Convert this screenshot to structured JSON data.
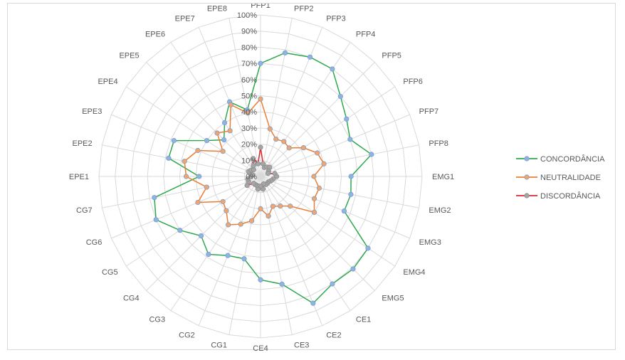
{
  "chart_data": {
    "type": "radar",
    "categories": [
      "PFP1",
      "PFP2",
      "PFP3",
      "PFP4",
      "PFP5",
      "PFP6",
      "PFP7",
      "PFP8",
      "EMG1",
      "EMG2",
      "EMG3",
      "EMG4",
      "EMG5",
      "CE1",
      "CE2",
      "CE3",
      "CE4",
      "CG1",
      "CG2",
      "CG3",
      "CG4",
      "CG5",
      "CG6",
      "CG7",
      "EPE1",
      "EPE2",
      "EPE3",
      "EPE4",
      "EPE5",
      "EPE6",
      "EPE7",
      "EPE8"
    ],
    "radial_ticks": [
      "0%",
      "10%",
      "20%",
      "30%",
      "40%",
      "50%",
      "60%",
      "70%",
      "80%",
      "90%",
      "100%"
    ],
    "rmax": 100,
    "series": [
      {
        "name": "CONCORDÂNCIA",
        "color": "#2ea84f",
        "marker": "#8fb4e3",
        "values": [
          70,
          78,
          80,
          80,
          70,
          64,
          60,
          70,
          56,
          57,
          56,
          80,
          81,
          80,
          85,
          68,
          64,
          52,
          53,
          58,
          52,
          60,
          70,
          67,
          38,
          58,
          58,
          40,
          32,
          40,
          50,
          42
        ]
      },
      {
        "name": "NEUTRALIDADE",
        "color": "#ed7d31",
        "marker": "#f4a66a",
        "values": [
          48,
          30,
          25,
          26,
          25,
          32,
          38,
          40,
          33,
          37,
          36,
          40,
          26,
          22,
          20,
          25,
          20,
          28,
          32,
          36,
          30,
          28,
          42,
          34,
          46,
          48,
          42,
          28,
          38,
          34,
          48,
          40
        ]
      },
      {
        "name": "DISCORDÂNCIA",
        "color": "#d9272e",
        "marker": "#a6a6a6",
        "values": [
          18,
          8,
          6,
          7,
          8,
          6,
          5,
          9,
          10,
          8,
          7,
          6,
          6,
          6,
          5,
          8,
          6,
          8,
          6,
          6,
          6,
          10,
          8,
          8,
          6,
          5,
          8,
          7,
          6,
          8,
          12,
          8
        ]
      }
    ],
    "legend_position": "right",
    "grid": true
  }
}
